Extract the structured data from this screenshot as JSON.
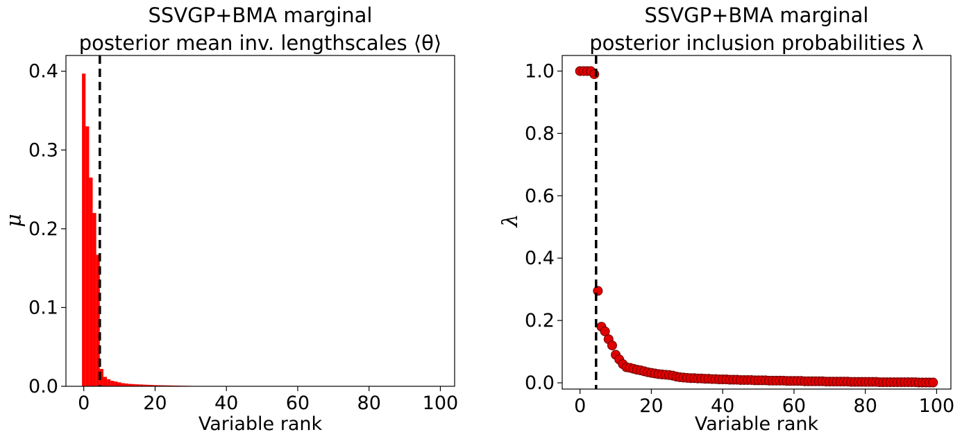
{
  "chart_data": [
    {
      "type": "bar",
      "title_line1": "SSVGP+BMA marginal",
      "title_line2": "posterior mean inv. lengthscales ⟨θ⟩",
      "xlabel": "Variable rank",
      "ylabel": "μ",
      "xlim": [
        -5,
        104
      ],
      "ylim": [
        0,
        0.42
      ],
      "xticks": [
        0,
        20,
        40,
        60,
        80,
        100
      ],
      "xtick_labels": [
        "0",
        "20",
        "40",
        "60",
        "80",
        "100"
      ],
      "yticks": [
        0.0,
        0.1,
        0.2,
        0.3,
        0.4
      ],
      "ytick_labels": [
        "0.0",
        "0.1",
        "0.2",
        "0.3",
        "0.4"
      ],
      "grid": false,
      "bar_color": "#ff0000",
      "vline_x": 4.5,
      "x": [
        0,
        1,
        2,
        3,
        4,
        5,
        6,
        7,
        8,
        9,
        10,
        11,
        12,
        13,
        14,
        15,
        16,
        17,
        18,
        19,
        20,
        21,
        22,
        23,
        24,
        25,
        26,
        27,
        28,
        29,
        30,
        31,
        32
      ],
      "values": [
        0.397,
        0.33,
        0.265,
        0.22,
        0.167,
        0.022,
        0.012,
        0.009,
        0.007,
        0.006,
        0.005,
        0.004,
        0.0035,
        0.003,
        0.0028,
        0.0025,
        0.0023,
        0.0021,
        0.0019,
        0.0017,
        0.0015,
        0.0014,
        0.0013,
        0.0012,
        0.0011,
        0.001,
        0.0009,
        0.0008,
        0.0007,
        0.0006,
        0.0005,
        0.0004,
        0.0003
      ]
    },
    {
      "type": "scatter",
      "title_line1": "SSVGP+BMA marginal",
      "title_line2": "posterior inclusion probabilities λ",
      "xlabel": "Variable rank",
      "ylabel": "λ",
      "xlim": [
        -5,
        104
      ],
      "ylim": [
        -0.02,
        1.05
      ],
      "xticks": [
        0,
        20,
        40,
        60,
        80,
        100
      ],
      "xtick_labels": [
        "0",
        "20",
        "40",
        "60",
        "80",
        "100"
      ],
      "yticks": [
        0.0,
        0.2,
        0.4,
        0.6,
        0.8,
        1.0
      ],
      "ytick_labels": [
        "0.0",
        "0.2",
        "0.4",
        "0.6",
        "0.8",
        "1.0"
      ],
      "grid": false,
      "marker_color": "#e00000",
      "marker_edge": "#6a0000",
      "vline_x": 4.5,
      "x": [
        0,
        1,
        2,
        3,
        4,
        5,
        6,
        7,
        8,
        9,
        10,
        11,
        12,
        13,
        14,
        15,
        16,
        17,
        18,
        19,
        20,
        21,
        22,
        23,
        24,
        25,
        26,
        27,
        28,
        29,
        30,
        31,
        32,
        33,
        34,
        35,
        36,
        37,
        38,
        39,
        40,
        41,
        42,
        43,
        44,
        45,
        46,
        47,
        48,
        49,
        50,
        51,
        52,
        53,
        54,
        55,
        56,
        57,
        58,
        59,
        60,
        61,
        62,
        63,
        64,
        65,
        66,
        67,
        68,
        69,
        70,
        71,
        72,
        73,
        74,
        75,
        76,
        77,
        78,
        79,
        80,
        81,
        82,
        83,
        84,
        85,
        86,
        87,
        88,
        89,
        90,
        91,
        92,
        93,
        94,
        95,
        96,
        97,
        98,
        99
      ],
      "y": [
        1.0,
        1.0,
        1.0,
        1.0,
        0.99,
        0.295,
        0.18,
        0.165,
        0.14,
        0.12,
        0.09,
        0.075,
        0.06,
        0.05,
        0.048,
        0.045,
        0.042,
        0.04,
        0.037,
        0.034,
        0.032,
        0.03,
        0.028,
        0.027,
        0.026,
        0.025,
        0.023,
        0.02,
        0.018,
        0.017,
        0.016,
        0.015,
        0.015,
        0.014,
        0.014,
        0.013,
        0.013,
        0.012,
        0.012,
        0.011,
        0.011,
        0.011,
        0.01,
        0.01,
        0.01,
        0.009,
        0.009,
        0.009,
        0.009,
        0.008,
        0.008,
        0.008,
        0.008,
        0.007,
        0.007,
        0.007,
        0.007,
        0.007,
        0.006,
        0.006,
        0.006,
        0.006,
        0.006,
        0.005,
        0.005,
        0.005,
        0.005,
        0.005,
        0.005,
        0.004,
        0.004,
        0.004,
        0.004,
        0.004,
        0.004,
        0.004,
        0.003,
        0.003,
        0.003,
        0.003,
        0.003,
        0.003,
        0.003,
        0.003,
        0.002,
        0.002,
        0.002,
        0.002,
        0.002,
        0.002,
        0.002,
        0.002,
        0.002,
        0.002,
        0.002,
        0.001,
        0.001,
        0.001,
        0.001,
        0.001
      ]
    }
  ]
}
